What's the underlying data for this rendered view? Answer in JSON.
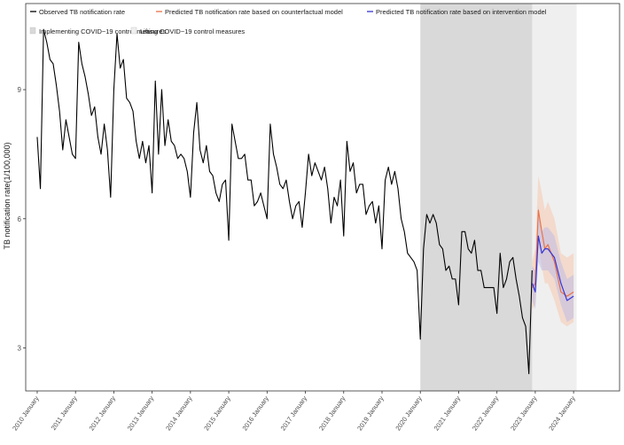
{
  "chart_data": {
    "type": "line",
    "ylabel": "TB notification rate(1/100,000)",
    "xlabel": "",
    "ylim": [
      2.0,
      11.0
    ],
    "yticks": [
      3,
      6,
      9
    ],
    "xlim": [
      2009.7,
      2025.2
    ],
    "xticks": [
      {
        "x": 2010,
        "label": "2010 January"
      },
      {
        "x": 2011,
        "label": "2011 January"
      },
      {
        "x": 2012,
        "label": "2012 January"
      },
      {
        "x": 2013,
        "label": "2013 January"
      },
      {
        "x": 2014,
        "label": "2014 January"
      },
      {
        "x": 2015,
        "label": "2015 January"
      },
      {
        "x": 2016,
        "label": "2016 January"
      },
      {
        "x": 2017,
        "label": "2017 January"
      },
      {
        "x": 2018,
        "label": "2018 January"
      },
      {
        "x": 2019,
        "label": "2019 January"
      },
      {
        "x": 2020,
        "label": "2020 January"
      },
      {
        "x": 2021,
        "label": "2021 January"
      },
      {
        "x": 2022,
        "label": "2022 January"
      },
      {
        "x": 2023,
        "label": "2023 January"
      },
      {
        "x": 2024,
        "label": "2024 January"
      }
    ],
    "grid": false,
    "legend_position": "top-left",
    "legend": [
      {
        "label": "Observed TB notification rate",
        "color": "#000000",
        "kind": "line"
      },
      {
        "label": "Predicted TB notification rate based on counterfactual model",
        "color": "#e8734a",
        "kind": "line"
      },
      {
        "label": "Predicted TB notification rate based on intervention model",
        "color": "#3535d6",
        "kind": "line"
      },
      {
        "label": "Implementing COVID−19 control measures",
        "color": "#d9d9d9",
        "kind": "fill"
      },
      {
        "label": "Lifting COVID−19 control measures",
        "color": "#efefef",
        "kind": "fill"
      }
    ],
    "shaded_regions": [
      {
        "name": "Implementing COVID−19 control measures",
        "x_start": 2020.0,
        "x_end": 2022.92,
        "color": "#d9d9d9"
      },
      {
        "name": "Lifting COVID−19 control measures",
        "x_start": 2022.92,
        "x_end": 2024.08,
        "color": "#efefef"
      }
    ],
    "series": [
      {
        "name": "Observed TB notification rate",
        "color": "#000000",
        "x_start": 2010.0,
        "step": 0.08333,
        "values": [
          7.9,
          6.7,
          10.4,
          10.1,
          9.7,
          9.6,
          9.1,
          8.5,
          7.6,
          8.3,
          7.9,
          7.5,
          7.4,
          10.1,
          9.6,
          9.3,
          8.9,
          8.4,
          8.6,
          7.9,
          7.5,
          8.2,
          7.6,
          6.5,
          9.0,
          10.3,
          9.5,
          9.7,
          8.8,
          8.7,
          8.5,
          7.8,
          7.4,
          7.8,
          7.3,
          7.7,
          6.6,
          9.2,
          7.5,
          9.0,
          7.7,
          8.3,
          7.8,
          7.7,
          7.4,
          7.5,
          7.4,
          7.1,
          6.5,
          8.0,
          8.7,
          7.6,
          7.3,
          7.7,
          7.1,
          7.0,
          6.6,
          6.4,
          6.8,
          6.9,
          5.5,
          8.2,
          7.8,
          7.4,
          7.4,
          7.5,
          6.9,
          6.9,
          6.3,
          6.4,
          6.6,
          6.3,
          6.0,
          8.2,
          7.5,
          7.2,
          6.8,
          6.7,
          6.9,
          6.4,
          6.0,
          6.3,
          6.4,
          5.8,
          6.6,
          7.5,
          7.0,
          7.3,
          7.1,
          6.9,
          7.2,
          6.7,
          5.9,
          6.5,
          6.3,
          6.9,
          5.6,
          7.8,
          7.1,
          7.3,
          6.6,
          6.8,
          6.8,
          6.1,
          6.3,
          6.4,
          5.9,
          6.3,
          5.3,
          6.9,
          7.2,
          6.8,
          7.1,
          6.7,
          6.0,
          5.7,
          5.2,
          5.1,
          5.0,
          4.8,
          3.2,
          5.3,
          6.1,
          5.9,
          6.1,
          5.9,
          5.4,
          5.3,
          4.8,
          4.9,
          4.6,
          4.6,
          4.0,
          5.7,
          5.7,
          5.3,
          5.2,
          5.5,
          4.8,
          4.8,
          4.4,
          4.4,
          4.4,
          4.4,
          3.8,
          5.2,
          4.4,
          4.6,
          5.0,
          5.1,
          4.6,
          4.2,
          3.7,
          3.5,
          2.4,
          4.8
        ]
      },
      {
        "name": "Predicted TB notification rate based on counterfactual model",
        "color": "#e8734a",
        "band_color": "#f5c9ae",
        "x": [
          2022.92,
          2023.0,
          2023.08,
          2023.17,
          2023.25,
          2023.33,
          2023.5,
          2023.67,
          2023.83,
          2024.0
        ],
        "values": [
          4.4,
          4.5,
          6.2,
          5.7,
          5.3,
          5.4,
          5.0,
          4.3,
          4.2,
          4.3
        ],
        "lower": [
          3.9,
          4.0,
          5.4,
          4.9,
          4.5,
          4.5,
          4.1,
          3.6,
          3.5,
          3.6
        ],
        "upper": [
          5.0,
          5.3,
          7.0,
          6.6,
          6.2,
          6.4,
          6.0,
          5.2,
          5.1,
          5.2
        ]
      },
      {
        "name": "Predicted TB notification rate based on intervention model",
        "color": "#3535d6",
        "band_color": "#b9b7e6",
        "x": [
          2022.92,
          2023.0,
          2023.08,
          2023.17,
          2023.25,
          2023.33,
          2023.5,
          2023.67,
          2023.83,
          2024.0
        ],
        "values": [
          4.5,
          4.3,
          5.6,
          5.2,
          5.3,
          5.3,
          5.1,
          4.5,
          4.1,
          4.2
        ],
        "lower": [
          4.1,
          3.9,
          5.0,
          4.8,
          4.8,
          4.8,
          4.6,
          4.0,
          3.6,
          3.7
        ],
        "upper": [
          4.9,
          4.8,
          6.3,
          5.7,
          5.8,
          5.8,
          5.6,
          5.0,
          4.6,
          4.7
        ]
      }
    ]
  }
}
